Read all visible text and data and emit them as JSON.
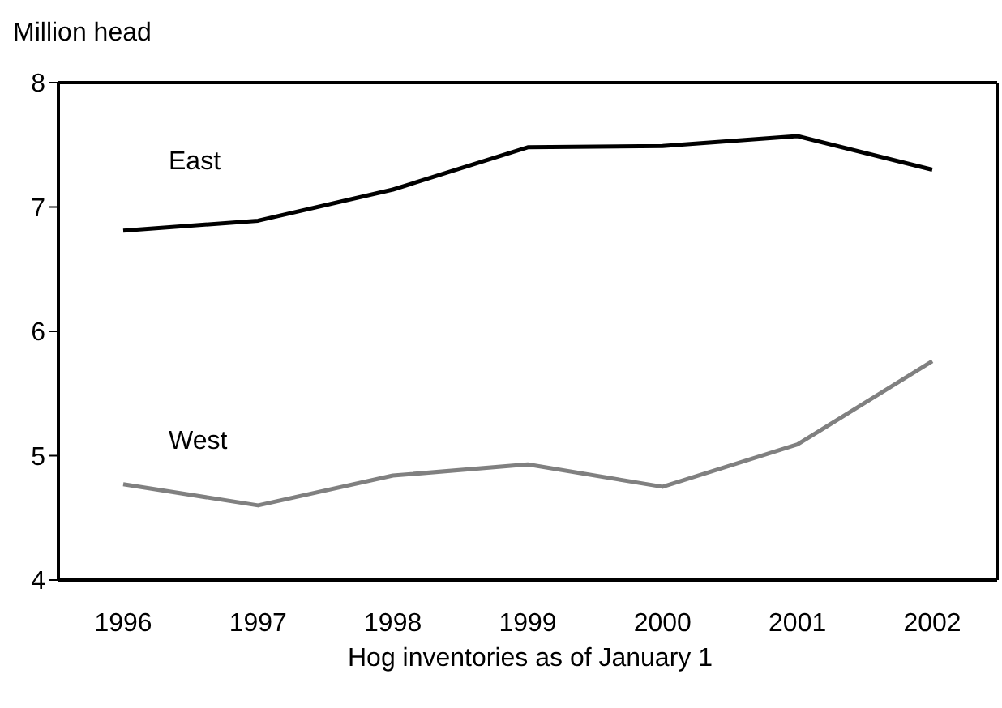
{
  "chart_data": {
    "type": "line",
    "ylabel": "Million head",
    "xlabel": "Hog inventories as of January 1",
    "categories": [
      "1996",
      "1997",
      "1998",
      "1999",
      "2000",
      "2001",
      "2002"
    ],
    "series": [
      {
        "name": "East",
        "color": "#000000",
        "values": [
          6.81,
          6.89,
          7.14,
          7.48,
          7.49,
          7.57,
          7.3
        ]
      },
      {
        "name": "West",
        "color": "#808080",
        "values": [
          4.77,
          4.6,
          4.84,
          4.93,
          4.75,
          5.09,
          5.76
        ]
      }
    ],
    "ylim": [
      4,
      8
    ],
    "yticks": [
      4,
      5,
      6,
      7,
      8
    ],
    "grid": false,
    "marker": "none",
    "line_style": "solid"
  }
}
